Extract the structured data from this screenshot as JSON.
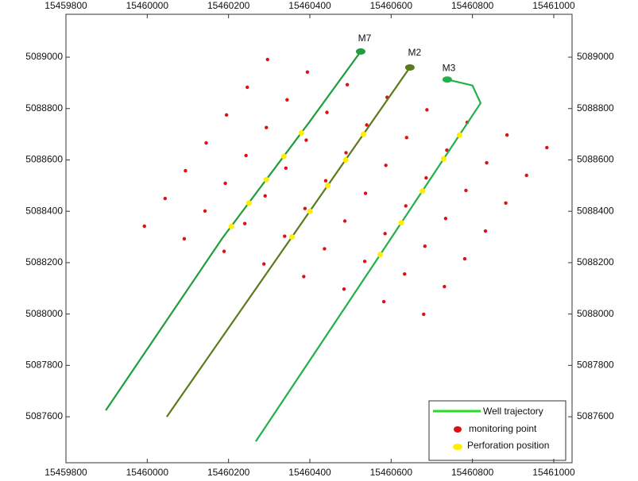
{
  "chart_data": {
    "type": "scatter",
    "xlim": [
      15459800,
      15461045
    ],
    "ylim": [
      5087421,
      5089167
    ],
    "xticks": [
      15459800,
      15460000,
      15460200,
      15460400,
      15460600,
      15460800,
      15461000
    ],
    "yticks": [
      5087600,
      5087800,
      5088000,
      5088200,
      5088400,
      5088600,
      5088800,
      5089000
    ],
    "wells": [
      {
        "name": "M7",
        "color": "#1e9e3c",
        "x": [
          15459898,
          15460185,
          15460400,
          15460525
        ],
        "y": [
          5087625,
          5088296,
          5088750,
          5089022
        ]
      },
      {
        "name": "M2",
        "color": "#5b7a1e",
        "x": [
          15460048,
          15460646
        ],
        "y": [
          5087600,
          5088960
        ]
      },
      {
        "name": "M3",
        "color": "#22b04a",
        "x": [
          15460267,
          15460560,
          15460820,
          15460800,
          15460738
        ],
        "y": [
          5087504,
          5088200,
          5088821,
          5088890,
          5088913
        ]
      }
    ],
    "series": [
      {
        "name": "Well trajectory",
        "color": "#22dd22"
      },
      {
        "name": "monitoring point",
        "color": "#dd1111",
        "x": [
          15460296,
          15460394,
          15460492,
          15460590,
          15460688,
          15460787,
          15460885,
          15460983,
          15460246,
          15460344,
          15460442,
          15460540,
          15460638,
          15460737,
          15460835,
          15460933,
          15460195,
          15460293,
          15460391,
          15460489,
          15460587,
          15460686,
          15460784,
          15460882,
          15460145,
          15460243,
          15460341,
          15460439,
          15460537,
          15460636,
          15460734,
          15460832,
          15460094,
          15460192,
          15460290,
          15460388,
          15460486,
          15460585,
          15460683,
          15460781,
          15460044,
          15460142,
          15460240,
          15460338,
          15460436,
          15460535,
          15460633,
          15460731,
          15459993,
          15460091,
          15460189,
          15460287,
          15460385,
          15460484,
          15460582,
          15460680
        ],
        "y": [
          5088991,
          5088942,
          5088893,
          5088844,
          5088795,
          5088746,
          5088697,
          5088648,
          5088883,
          5088834,
          5088785,
          5088736,
          5088687,
          5088638,
          5088589,
          5088540,
          5088775,
          5088726,
          5088677,
          5088628,
          5088579,
          5088530,
          5088481,
          5088432,
          5088666,
          5088617,
          5088568,
          5088519,
          5088470,
          5088421,
          5088372,
          5088323,
          5088558,
          5088509,
          5088460,
          5088411,
          5088362,
          5088313,
          5088264,
          5088215,
          5088450,
          5088401,
          5088352,
          5088303,
          5088254,
          5088205,
          5088156,
          5088107,
          5088342,
          5088293,
          5088244,
          5088195,
          5088146,
          5088097,
          5088048,
          5087999
        ]
      },
      {
        "name": "Perforation position",
        "color": "#ffee00",
        "x": [
          15460207,
          15460250,
          15460293,
          15460336,
          15460379,
          15460356,
          15460400,
          15460444,
          15460488,
          15460532,
          15460573,
          15460625,
          15460677,
          15460729,
          15460768
        ],
        "y": [
          5088341,
          5088432,
          5088523,
          5088614,
          5088705,
          5088300,
          5088400,
          5088500,
          5088600,
          5088700,
          5088231,
          5088355,
          5088479,
          5088604,
          5088697
        ]
      }
    ]
  }
}
